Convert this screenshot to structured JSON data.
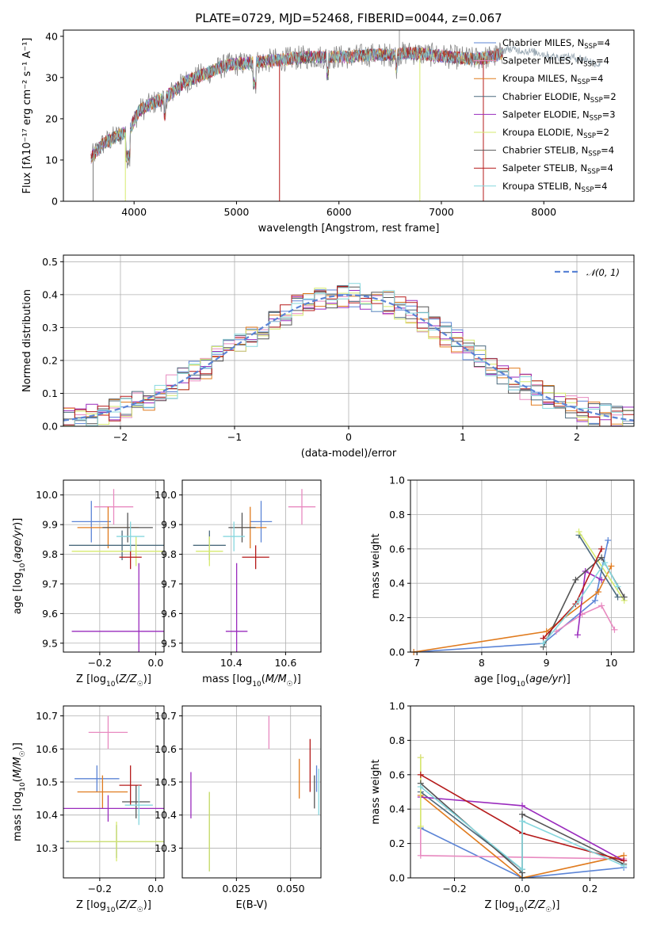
{
  "figure_title": "PLATE=0729, MJD=52468, FIBERID=0044, z=0.067",
  "colors": {
    "Chabrier MILES": "#5b84d6",
    "Salpeter MILES": "#e88ac0",
    "Kroupa MILES": "#e07b1e",
    "Chabrier ELODIE": "#4d6b7e",
    "Salpeter ELODIE": "#9a2bbd",
    "Kroupa ELODIE": "#d6ea6e",
    "Chabrier STELIB": "#555555",
    "Salpeter STELIB": "#b51a1a",
    "Kroupa STELIB": "#86d7de",
    "data": "#7a7a7a"
  },
  "chart_data": [
    {
      "id": "spectrum",
      "type": "line",
      "xlabel": "wavelength [Angstrom, rest frame]",
      "ylabel": "Flux [fλ10⁻¹⁷ erg cm⁻² s⁻¹ A⁻¹]",
      "xlim": [
        3310,
        8880
      ],
      "ylim": [
        0,
        41.5
      ],
      "xticks": [
        4000,
        5000,
        6000,
        7000,
        8000
      ],
      "yticks": [
        0,
        10,
        20,
        30,
        40
      ],
      "grid": false,
      "legend_position": "top-right",
      "legend": [
        {
          "label": "Chabrier MILES, N",
          "sub": "SSP",
          "suffix": "=4"
        },
        {
          "label": "Salpeter MILES, N",
          "sub": "SSP",
          "suffix": "=4"
        },
        {
          "label": "Kroupa MILES, N",
          "sub": "SSP",
          "suffix": "=4"
        },
        {
          "label": "Chabrier ELODIE, N",
          "sub": "SSP",
          "suffix": "=2"
        },
        {
          "label": "Salpeter ELODIE, N",
          "sub": "SSP",
          "suffix": "=3"
        },
        {
          "label": "Kroupa ELODIE, N",
          "sub": "SSP",
          "suffix": "=2"
        },
        {
          "label": "Chabrier STELIB, N",
          "sub": "SSP",
          "suffix": "=4"
        },
        {
          "label": "Salpeter STELIB, N",
          "sub": "SSP",
          "suffix": "=4"
        },
        {
          "label": "Kroupa STELIB, N",
          "sub": "SSP",
          "suffix": "=4"
        }
      ],
      "continuum": {
        "x": [
          3560,
          3700,
          3850,
          3950,
          4050,
          4200,
          4300,
          4500,
          4700,
          4900,
          5100,
          5300,
          5500,
          5700,
          5900,
          6100,
          6300,
          6500,
          6700,
          6900,
          7100,
          7300,
          7500,
          7600
        ],
        "y": [
          10,
          14,
          16,
          17,
          22,
          24,
          25,
          29,
          31,
          33,
          33.5,
          34,
          34.5,
          35,
          35,
          35,
          35.5,
          35.5,
          36,
          35.5,
          35,
          34.5,
          35,
          36
        ]
      },
      "data_extension": {
        "x": [
          7560,
          7650,
          7800,
          7950,
          8100,
          8250,
          8400,
          8550
        ],
        "y": [
          36,
          37,
          36.5,
          36,
          35,
          35,
          34.5,
          33
        ]
      }
    },
    {
      "id": "residuals",
      "type": "line",
      "xlabel": "(data-model)/error",
      "ylabel": "Normed distribution",
      "xlim": [
        -2.5,
        2.5
      ],
      "ylim": [
        0,
        0.52
      ],
      "xticks": [
        -2,
        -1,
        0,
        1,
        2
      ],
      "yticks": [
        0.0,
        0.1,
        0.2,
        0.3,
        0.4,
        0.5
      ],
      "grid": true,
      "legend_position": "top-right",
      "legend": [
        {
          "label": "𝒩(0, 1)"
        }
      ],
      "normal_curve": {
        "mean": 0,
        "sigma": 1
      }
    },
    {
      "id": "age_vs_Z",
      "type": "scatter",
      "xlabel": "Z [log10(Z/Z☉)]",
      "ylabel": "age [log10(age/yr)]",
      "xlim": [
        -0.33,
        0.03
      ],
      "ylim": [
        9.47,
        10.05
      ],
      "xticks": [
        -0.2,
        0.0
      ],
      "xticklabels": [
        "−0.2",
        "0.0"
      ],
      "yticks": [
        9.5,
        9.6,
        9.7,
        9.8,
        9.9,
        10.0
      ],
      "grid": true,
      "points": [
        {
          "model": "Chabrier MILES",
          "x": -0.23,
          "xerr": 0.07,
          "y": 9.91,
          "yerr": 0.07
        },
        {
          "model": "Salpeter MILES",
          "x": -0.15,
          "xerr": 0.07,
          "y": 9.96,
          "yerr": 0.06
        },
        {
          "model": "Kroupa MILES",
          "x": -0.17,
          "xerr": 0.11,
          "y": 9.89,
          "yerr": 0.07
        },
        {
          "model": "Chabrier ELODIE",
          "x": -0.12,
          "xerr": 0.19,
          "y": 9.83,
          "yerr": 0.05
        },
        {
          "model": "Salpeter ELODIE",
          "x": -0.06,
          "xerr": 0.24,
          "y": 9.54,
          "yerr": 0.23
        },
        {
          "model": "Kroupa ELODIE",
          "x": -0.07,
          "xerr": 0.23,
          "y": 9.81,
          "yerr": 0.05
        },
        {
          "model": "Chabrier STELIB",
          "x": -0.1,
          "xerr": 0.09,
          "y": 9.89,
          "yerr": 0.05
        },
        {
          "model": "Salpeter STELIB",
          "x": -0.09,
          "xerr": 0.04,
          "y": 9.79,
          "yerr": 0.04
        },
        {
          "model": "Kroupa STELIB",
          "x": -0.09,
          "xerr": 0.05,
          "y": 9.86,
          "yerr": 0.05
        }
      ]
    },
    {
      "id": "age_vs_mass",
      "type": "scatter",
      "xlabel": "mass [log10(M/M☉)]",
      "ylabel": "",
      "xlim": [
        10.22,
        10.73
      ],
      "ylim": [
        9.47,
        10.05
      ],
      "xticks": [
        10.4,
        10.6
      ],
      "xticklabels": [
        "10.4",
        "10.6"
      ],
      "yticks": [
        9.5,
        9.6,
        9.7,
        9.8,
        9.9,
        10.0
      ],
      "grid": true,
      "points": [
        {
          "model": "Chabrier MILES",
          "x": 10.51,
          "xerr": 0.04,
          "y": 9.91,
          "yerr": 0.07
        },
        {
          "model": "Salpeter MILES",
          "x": 10.66,
          "xerr": 0.05,
          "y": 9.96,
          "yerr": 0.06
        },
        {
          "model": "Kroupa MILES",
          "x": 10.47,
          "xerr": 0.06,
          "y": 9.89,
          "yerr": 0.07
        },
        {
          "model": "Chabrier ELODIE",
          "x": 10.32,
          "xerr": 0.06,
          "y": 9.83,
          "yerr": 0.05
        },
        {
          "model": "Salpeter ELODIE",
          "x": 10.42,
          "xerr": 0.04,
          "y": 9.54,
          "yerr": 0.23
        },
        {
          "model": "Kroupa ELODIE",
          "x": 10.32,
          "xerr": 0.05,
          "y": 9.81,
          "yerr": 0.05
        },
        {
          "model": "Chabrier STELIB",
          "x": 10.44,
          "xerr": 0.05,
          "y": 9.89,
          "yerr": 0.05
        },
        {
          "model": "Salpeter STELIB",
          "x": 10.49,
          "xerr": 0.05,
          "y": 9.79,
          "yerr": 0.04
        },
        {
          "model": "Kroupa STELIB",
          "x": 10.41,
          "xerr": 0.04,
          "y": 9.86,
          "yerr": 0.05
        }
      ]
    },
    {
      "id": "weight_vs_age",
      "type": "line",
      "xlabel": "age [log10(age/yr)]",
      "ylabel": "mass weight",
      "xlim": [
        6.9,
        10.35
      ],
      "ylim": [
        0,
        1
      ],
      "xticks": [
        7,
        8,
        9,
        10
      ],
      "yticks": [
        0.0,
        0.2,
        0.4,
        0.6,
        0.8,
        1.0
      ],
      "grid": true,
      "series": [
        {
          "model": "Chabrier MILES",
          "x": [
            6.95,
            8.95,
            9.75,
            9.95
          ],
          "y": [
            0.0,
            0.05,
            0.3,
            0.65
          ]
        },
        {
          "model": "Salpeter MILES",
          "x": [
            9.15,
            9.55,
            9.85,
            10.05
          ],
          "y": [
            0.12,
            0.22,
            0.27,
            0.13
          ]
        },
        {
          "model": "Kroupa MILES",
          "x": [
            6.95,
            9.0,
            9.8,
            10.0
          ],
          "y": [
            0.0,
            0.12,
            0.35,
            0.5
          ]
        },
        {
          "model": "Chabrier ELODIE",
          "x": [
            9.5,
            10.1
          ],
          "y": [
            0.68,
            0.32
          ]
        },
        {
          "model": "Salpeter ELODIE",
          "x": [
            9.48,
            9.6,
            9.85
          ],
          "y": [
            0.1,
            0.47,
            0.42
          ]
        },
        {
          "model": "Kroupa ELODIE",
          "x": [
            9.5,
            10.2
          ],
          "y": [
            0.7,
            0.3
          ]
        },
        {
          "model": "Chabrier STELIB",
          "x": [
            8.95,
            9.45,
            9.85,
            10.2
          ],
          "y": [
            0.03,
            0.42,
            0.55,
            0.32
          ]
        },
        {
          "model": "Salpeter STELIB",
          "x": [
            8.95,
            9.45,
            9.85
          ],
          "y": [
            0.08,
            0.28,
            0.6
          ]
        },
        {
          "model": "Kroupa STELIB",
          "x": [
            8.95,
            9.5,
            9.9,
            10.1
          ],
          "y": [
            0.05,
            0.3,
            0.52,
            0.38
          ]
        }
      ]
    },
    {
      "id": "mass_vs_Z",
      "type": "scatter",
      "xlabel": "Z [log10(Z/Z☉)]",
      "ylabel": "mass [log10(M/M☉)]",
      "xlim": [
        -0.33,
        0.03
      ],
      "ylim": [
        10.21,
        10.73
      ],
      "xticks": [
        -0.2,
        0.0
      ],
      "xticklabels": [
        "−0.2",
        "0.0"
      ],
      "yticks": [
        10.3,
        10.4,
        10.5,
        10.6,
        10.7
      ],
      "grid": true,
      "points": [
        {
          "model": "Chabrier MILES",
          "x": -0.21,
          "xerr": 0.08,
          "y": 10.51,
          "yerr": 0.04
        },
        {
          "model": "Salpeter MILES",
          "x": -0.17,
          "xerr": 0.07,
          "y": 10.65,
          "yerr": 0.05
        },
        {
          "model": "Kroupa MILES",
          "x": -0.19,
          "xerr": 0.09,
          "y": 10.47,
          "yerr": 0.05
        },
        {
          "model": "Chabrier ELODIE",
          "x": -0.14,
          "xerr": 0.18,
          "y": 10.32,
          "yerr": 0.05
        },
        {
          "model": "Salpeter ELODIE",
          "x": -0.17,
          "xerr": 0.2,
          "y": 10.42,
          "yerr": 0.04
        },
        {
          "model": "Kroupa ELODIE",
          "x": -0.14,
          "xerr": 0.17,
          "y": 10.32,
          "yerr": 0.06
        },
        {
          "model": "Chabrier STELIB",
          "x": -0.07,
          "xerr": 0.05,
          "y": 10.44,
          "yerr": 0.05
        },
        {
          "model": "Salpeter STELIB",
          "x": -0.09,
          "xerr": 0.04,
          "y": 10.49,
          "yerr": 0.06
        },
        {
          "model": "Kroupa STELIB",
          "x": -0.06,
          "xerr": 0.05,
          "y": 10.43,
          "yerr": 0.06
        }
      ]
    },
    {
      "id": "mass_vs_EBV",
      "type": "scatter",
      "xlabel": "E(B-V)",
      "ylabel": "",
      "xlim": [
        0.0,
        0.064
      ],
      "ylim": [
        10.21,
        10.73
      ],
      "xticks": [
        0.025,
        0.05
      ],
      "xticklabels": [
        "0.025",
        "0.050"
      ],
      "yticks": [
        10.3,
        10.4,
        10.5,
        10.6,
        10.7
      ],
      "grid": true,
      "points": [
        {
          "model": "Chabrier MILES",
          "x": 0.062,
          "xerr": 0.0,
          "y": 10.51,
          "yerr": 0.04
        },
        {
          "model": "Salpeter MILES",
          "x": 0.04,
          "xerr": 0.0,
          "y": 10.65,
          "yerr": 0.05
        },
        {
          "model": "Kroupa MILES",
          "x": 0.054,
          "xerr": 0.0,
          "y": 10.51,
          "yerr": 0.06
        },
        {
          "model": "Chabrier ELODIE",
          "x": 0.0125,
          "xerr": 0.0,
          "y": 10.35,
          "yerr": 0.12
        },
        {
          "model": "Salpeter ELODIE",
          "x": 0.004,
          "xerr": 0.0,
          "y": 10.46,
          "yerr": 0.07
        },
        {
          "model": "Kroupa ELODIE",
          "x": 0.0125,
          "xerr": 0.0,
          "y": 10.35,
          "yerr": 0.12
        },
        {
          "model": "Chabrier STELIB",
          "x": 0.061,
          "xerr": 0.0,
          "y": 10.47,
          "yerr": 0.05
        },
        {
          "model": "Salpeter STELIB",
          "x": 0.059,
          "xerr": 0.0,
          "y": 10.55,
          "yerr": 0.08
        },
        {
          "model": "Kroupa STELIB",
          "x": 0.063,
          "xerr": 0.0,
          "y": 10.47,
          "yerr": 0.07
        }
      ]
    },
    {
      "id": "weight_vs_Z",
      "type": "line",
      "xlabel": "Z [log10(Z/Z☉)]",
      "ylabel": "mass weight",
      "xlim": [
        -0.33,
        0.33
      ],
      "ylim": [
        0,
        1
      ],
      "xticks": [
        -0.2,
        0.0,
        0.2
      ],
      "xticklabels": [
        "−0.2",
        "0.0",
        "0.2"
      ],
      "yticks": [
        0.0,
        0.2,
        0.4,
        0.6,
        0.8,
        1.0
      ],
      "grid": true,
      "series": [
        {
          "model": "Chabrier MILES",
          "x": [
            -0.3,
            0.0,
            0.3
          ],
          "y": [
            0.29,
            0.0,
            0.06
          ]
        },
        {
          "model": "Salpeter MILES",
          "x": [
            -0.3,
            -0.3,
            0.3
          ],
          "y": [
            0.7,
            0.13,
            0.11
          ]
        },
        {
          "model": "Kroupa MILES",
          "x": [
            -0.3,
            0.0,
            0.3
          ],
          "y": [
            0.48,
            0.0,
            0.13
          ]
        },
        {
          "model": "Chabrier ELODIE",
          "x": [
            -0.3,
            0.0,
            0.0
          ],
          "y": [
            0.5,
            0.05,
            0.0
          ]
        },
        {
          "model": "Salpeter ELODIE",
          "x": [
            -0.3,
            0.0,
            0.3
          ],
          "y": [
            0.47,
            0.42,
            0.1
          ]
        },
        {
          "model": "Kroupa ELODIE",
          "x": [
            -0.3,
            -0.3
          ],
          "y": [
            0.7,
            0.3
          ]
        },
        {
          "model": "Chabrier STELIB",
          "x": [
            -0.3,
            0.0,
            0.0,
            0.3
          ],
          "y": [
            0.55,
            0.03,
            0.37,
            0.08
          ]
        },
        {
          "model": "Salpeter STELIB",
          "x": [
            -0.3,
            0.0,
            0.3
          ],
          "y": [
            0.6,
            0.26,
            0.1
          ]
        },
        {
          "model": "Kroupa STELIB",
          "x": [
            -0.3,
            0.0,
            0.0,
            0.3
          ],
          "y": [
            0.53,
            0.05,
            0.33,
            0.07
          ]
        }
      ]
    }
  ]
}
